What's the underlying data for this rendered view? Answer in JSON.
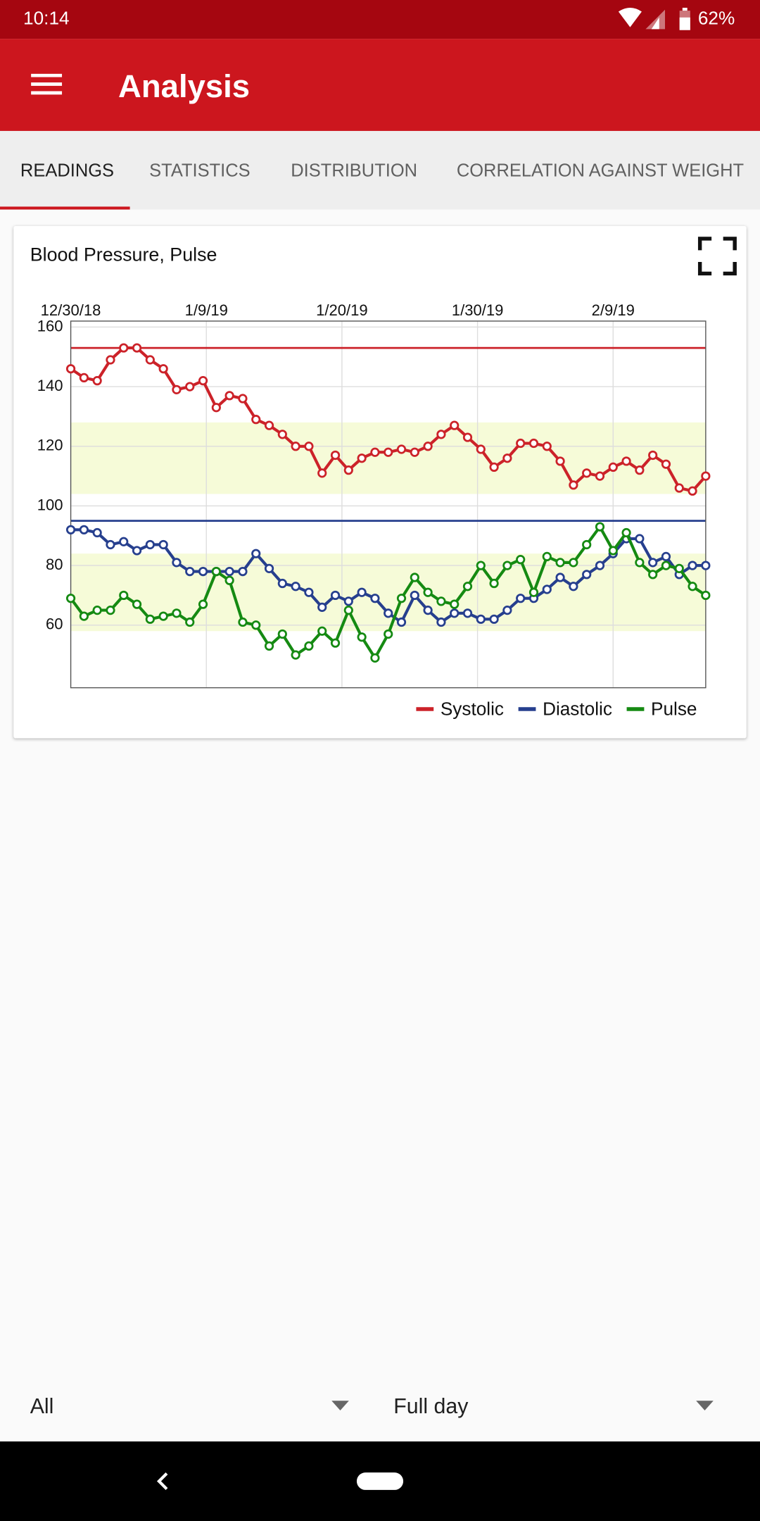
{
  "status_bar": {
    "time": "10:14",
    "battery": "62%"
  },
  "app_bar": {
    "title": "Analysis"
  },
  "tabs": [
    "READINGS",
    "STATISTICS",
    "DISTRIBUTION",
    "CORRELATION AGAINST WEIGHT"
  ],
  "card": {
    "title": "Blood Pressure, Pulse"
  },
  "chart_data": {
    "type": "line",
    "x": [
      0,
      1,
      2,
      3,
      4,
      5,
      6,
      7,
      8,
      9,
      10,
      11,
      12,
      13,
      14,
      15,
      16,
      17,
      18,
      19,
      20,
      21,
      22,
      23,
      24,
      25,
      26,
      27,
      28,
      29,
      30,
      31,
      32,
      33,
      34,
      35,
      36,
      37,
      38,
      39,
      40,
      41,
      42,
      43,
      44,
      45,
      46,
      47,
      48
    ],
    "xlim": [
      0,
      48
    ],
    "xticks": [
      {
        "value": 0,
        "label": "12/30/18"
      },
      {
        "value": 10.25,
        "label": "1/9/19"
      },
      {
        "value": 20.5,
        "label": "1/20/19"
      },
      {
        "value": 30.75,
        "label": "1/30/19"
      },
      {
        "value": 41,
        "label": "2/9/19"
      }
    ],
    "ylim": [
      39,
      162
    ],
    "yticks": [
      60,
      80,
      100,
      120,
      140,
      160
    ],
    "grid": true,
    "legend": "bottom-right",
    "markers": true,
    "series": [
      {
        "name": "Systolic",
        "color": "#cc2229",
        "values": [
          146,
          143,
          142,
          149,
          153,
          153,
          149,
          146,
          139,
          140,
          142,
          133,
          137,
          136,
          129,
          127,
          124,
          120,
          120,
          111,
          117,
          112,
          116,
          118,
          118,
          119,
          118,
          120,
          124,
          127,
          123,
          119,
          113,
          116,
          121,
          121,
          120,
          115,
          107,
          111,
          110,
          113,
          115,
          112,
          117,
          114,
          106,
          105,
          110
        ]
      },
      {
        "name": "Diastolic",
        "color": "#263f8e",
        "values": [
          92,
          92,
          91,
          87,
          88,
          85,
          87,
          87,
          81,
          78,
          78,
          78,
          78,
          78,
          84,
          79,
          74,
          73,
          71,
          66,
          70,
          68,
          71,
          69,
          64,
          61,
          70,
          65,
          61,
          64,
          64,
          62,
          62,
          65,
          69,
          69,
          72,
          76,
          73,
          77,
          80,
          84,
          89,
          89,
          81,
          83,
          77,
          80,
          80
        ]
      },
      {
        "name": "Pulse",
        "color": "#158a12",
        "values": [
          69,
          63,
          65,
          65,
          70,
          67,
          62,
          63,
          64,
          61,
          67,
          78,
          75,
          61,
          60,
          53,
          57,
          50,
          53,
          58,
          54,
          65,
          56,
          49,
          57,
          69,
          76,
          71,
          68,
          67,
          73,
          80,
          74,
          80,
          82,
          71,
          83,
          81,
          81,
          87,
          93,
          85,
          91,
          81,
          77,
          80,
          79,
          73,
          70
        ]
      }
    ],
    "reference_lines": [
      {
        "value": 153,
        "color": "#cc2229"
      },
      {
        "value": 95,
        "color": "#263f8e"
      }
    ],
    "bands": [
      {
        "range": [
          104,
          128
        ],
        "color": "#f6fbd8"
      },
      {
        "range": [
          58,
          84
        ],
        "color": "#f6fbd8"
      }
    ]
  },
  "filters": [
    "All",
    "Full day"
  ]
}
